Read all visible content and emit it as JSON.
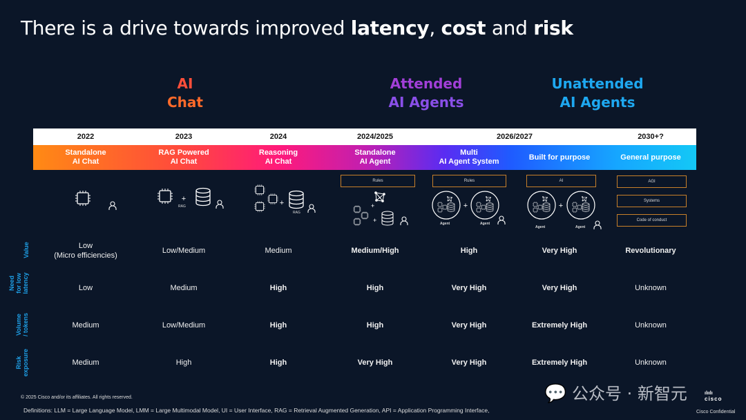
{
  "title": {
    "prefix": "There is a drive towards improved ",
    "w1": "latency",
    "sep1": ", ",
    "w2": "cost",
    "sep2": " and ",
    "w3": "risk"
  },
  "groups": [
    {
      "line1": "AI",
      "line2": "Chat",
      "color": "#ff4e3a"
    },
    {
      "line1": "Attended",
      "line2": "AI Agents",
      "color": "#a23fd8"
    },
    {
      "line1": "Unattended",
      "line2": "AI Agents",
      "color": "#1ea8f0"
    }
  ],
  "years": [
    "2022",
    "2023",
    "2024",
    "2024/2025",
    "2026/2027",
    "2030+?"
  ],
  "stages": [
    {
      "l1": "Standalone",
      "l2": "AI Chat"
    },
    {
      "l1": "RAG Powered",
      "l2": "AI Chat"
    },
    {
      "l1": "Reasoning",
      "l2": "AI Chat"
    },
    {
      "l1": "Standalone",
      "l2": "AI Agent"
    },
    {
      "l1": "Multi",
      "l2": "AI Agent System"
    },
    {
      "l1": "Built for purpose",
      "l2": ""
    },
    {
      "l1": "General purpose",
      "l2": ""
    }
  ],
  "icons": {
    "llm": "LLM",
    "rag": "RAG",
    "agent": "Agent",
    "plus": "+",
    "rules": "Rules",
    "ai": "AI",
    "agi": "AGI",
    "systems": "Systems",
    "conduct": "Code of conduct"
  },
  "rows": [
    {
      "label": "Value",
      "cells": [
        "Low\n(Micro efficiencies)",
        "Low/Medium",
        "Medium",
        "Medium/High",
        "High",
        "Very High",
        "Revolutionary"
      ]
    },
    {
      "label": "Need\nfor low\nlatency",
      "cells": [
        "Low",
        "Medium",
        "High",
        "High",
        "Very High",
        "Very High",
        "Unknown"
      ]
    },
    {
      "label": "Volume\n/ tokens",
      "cells": [
        "Medium",
        "Low/Medium",
        "High",
        "High",
        "Very High",
        "Extremely High",
        "Unknown"
      ]
    },
    {
      "label": "Risk\nexposure",
      "cells": [
        "Medium",
        "High",
        "High",
        "Very High",
        "Very High",
        "Extremely High",
        "Unknown"
      ]
    }
  ],
  "footer": {
    "copyright": "© 2025 Cisco and/or its affiliates. All rights reserved.",
    "definitions": "Definitions: LLM = Large Language Model, LMM = Large Multimodal Model, UI = User Interface, RAG = Retrieval Augmented Generation, API = Application Programming Interface,",
    "confidential": "Cisco Confidential",
    "logo": "cisco",
    "watermark": "公众号 · 新智元"
  }
}
